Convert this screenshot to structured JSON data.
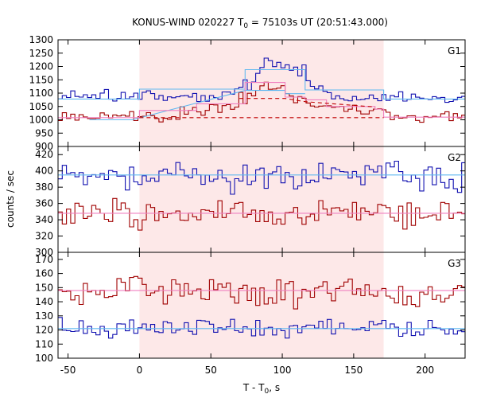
{
  "chart_data": {
    "type": "line",
    "title": {
      "prefix": "KONUS-WIND 020227 T",
      "subscript": "0",
      "suffix": " = 75103s UT (20:51:43.000)"
    },
    "xlabel": {
      "main": "T - T",
      "subscript": "0",
      "unit": ", s"
    },
    "ylabel": "counts / sec",
    "xlim": [
      -57,
      228
    ],
    "x_ticks": [
      -50,
      0,
      50,
      100,
      150,
      200
    ],
    "highlight": {
      "x_start": 0,
      "x_end": 171,
      "color": "#fde8e8"
    },
    "bin_width": 2.944,
    "colors": {
      "blue_series": "#1010b0",
      "red_series": "#a00000",
      "light_blue_fit": "#60b8f0",
      "pink_fit": "#f080c0",
      "red_dashed": "#c00000"
    },
    "panels": [
      {
        "id": "G1",
        "label": "G1",
        "ylim": [
          900,
          1300
        ],
        "y_ticks": [
          900,
          950,
          1000,
          1050,
          1100,
          1150,
          1200,
          1250,
          1300
        ],
        "series": [
          {
            "role": "noisy",
            "color": "blue_series",
            "base": 1085,
            "amplitude": 16,
            "seed": 11,
            "bumps": [
              {
                "x": 80,
                "y": 1185
              },
              {
                "x": 83,
                "y": 1225
              },
              {
                "x": 86,
                "y": 1265
              },
              {
                "x": 89,
                "y": 1240
              },
              {
                "x": 92,
                "y": 1210
              },
              {
                "x": 95,
                "y": 1235
              },
              {
                "x": 98,
                "y": 1200
              },
              {
                "x": 101,
                "y": 1225
              },
              {
                "x": 104,
                "y": 1190
              },
              {
                "x": 107,
                "y": 1210
              },
              {
                "x": 110,
                "y": 1180
              },
              {
                "x": 113,
                "y": 1215
              },
              {
                "x": 116,
                "y": 1160
              },
              {
                "x": 119,
                "y": 1130
              },
              {
                "x": 122,
                "y": 1120
              },
              {
                "x": 125,
                "y": 1130
              },
              {
                "x": 72,
                "y": 1140
              },
              {
                "x": 75,
                "y": 1120
              },
              {
                "x": 68,
                "y": 1125
              }
            ]
          },
          {
            "role": "noisy",
            "color": "red_series",
            "base": 1010,
            "amplitude": 15,
            "seed": 23,
            "bumps": [
              {
                "x": 30,
                "y": 1040
              },
              {
                "x": 40,
                "y": 1050
              },
              {
                "x": 50,
                "y": 1055
              },
              {
                "x": 60,
                "y": 1070
              },
              {
                "x": 70,
                "y": 1090
              },
              {
                "x": 76,
                "y": 1105
              },
              {
                "x": 80,
                "y": 1120
              },
              {
                "x": 83,
                "y": 1140
              },
              {
                "x": 86,
                "y": 1150
              },
              {
                "x": 89,
                "y": 1135
              },
              {
                "x": 92,
                "y": 1140
              },
              {
                "x": 95,
                "y": 1155
              },
              {
                "x": 98,
                "y": 1130
              },
              {
                "x": 101,
                "y": 1105
              },
              {
                "x": 104,
                "y": 1090
              },
              {
                "x": 107,
                "y": 1070
              },
              {
                "x": 110,
                "y": 1080
              },
              {
                "x": 113,
                "y": 1085
              },
              {
                "x": 118,
                "y": 1060
              },
              {
                "x": 125,
                "y": 1070
              },
              {
                "x": 132,
                "y": 1060
              },
              {
                "x": 140,
                "y": 1055
              },
              {
                "x": 150,
                "y": 1050
              },
              {
                "x": 160,
                "y": 1045
              },
              {
                "x": 168,
                "y": 1040
              }
            ]
          },
          {
            "role": "fit",
            "color": "light_blue_fit",
            "steps": [
              {
                "x0": -57,
                "x1": 0,
                "y": 1078
              },
              {
                "x0": 0,
                "x1": 74,
                "y": 1115
              },
              {
                "x0": 74,
                "x1": 116,
                "y": 1188
              },
              {
                "x0": 116,
                "x1": 171,
                "y": 1112
              },
              {
                "x0": 171,
                "x1": 228,
                "y": 1078
              }
            ]
          },
          {
            "role": "fit",
            "color": "light_blue_fit",
            "steps": [
              {
                "x0": -35,
                "x1": -5,
                "y": 1000
              },
              {
                "x0": 74,
                "x1": 102,
                "y": 1110
              },
              {
                "x0": 102,
                "x1": 116,
                "y": 1098
              }
            ]
          },
          {
            "role": "fit",
            "color": "pink_fit",
            "steps": [
              {
                "x0": -57,
                "x1": 0,
                "y": 1008
              },
              {
                "x0": 0,
                "x1": 40,
                "y": 1035
              },
              {
                "x0": 40,
                "x1": 74,
                "y": 1060
              },
              {
                "x0": 74,
                "x1": 102,
                "y": 1140
              },
              {
                "x0": 102,
                "x1": 116,
                "y": 1085
              },
              {
                "x0": 116,
                "x1": 131,
                "y": 1075
              },
              {
                "x0": 131,
                "x1": 165,
                "y": 1050
              },
              {
                "x0": 165,
                "x1": 171,
                "y": 1040
              },
              {
                "x0": 171,
                "x1": 228,
                "y": 1010
              }
            ]
          },
          {
            "role": "dashed",
            "color": "red_dashed",
            "points": [
              {
                "x": 0,
                "y": 1008
              },
              {
                "x": 171,
                "y": 1008
              }
            ]
          },
          {
            "role": "dashed",
            "color": "red_dashed",
            "points": [
              {
                "x": 70,
                "y": 1080
              },
              {
                "x": 102,
                "y": 1080
              },
              {
                "x": 116,
                "y": 1068
              },
              {
                "x": 165,
                "y": 1048
              }
            ]
          }
        ]
      },
      {
        "id": "G2",
        "label": "G2",
        "ylim": [
          300,
          430
        ],
        "y_ticks": [
          300,
          320,
          340,
          360,
          380,
          400,
          420
        ],
        "series": [
          {
            "role": "noisy",
            "color": "blue_series",
            "base": 393,
            "amplitude": 13,
            "seed": 37,
            "bumps": []
          },
          {
            "role": "noisy",
            "color": "red_series",
            "base": 348,
            "amplitude": 12,
            "seed": 53,
            "bumps": []
          },
          {
            "role": "fit",
            "color": "light_blue_fit",
            "steps": [
              {
                "x0": -57,
                "x1": 228,
                "y": 395
              }
            ]
          },
          {
            "role": "fit",
            "color": "pink_fit",
            "steps": [
              {
                "x0": -57,
                "x1": 228,
                "y": 348
              }
            ]
          }
        ]
      },
      {
        "id": "G3",
        "label": "G3",
        "ylim": [
          100,
          175
        ],
        "y_ticks": [
          100,
          110,
          120,
          130,
          140,
          150,
          160,
          170
        ],
        "series": [
          {
            "role": "noisy",
            "color": "red_series",
            "base": 147,
            "amplitude": 8,
            "seed": 71,
            "bumps": []
          },
          {
            "role": "noisy",
            "color": "blue_series",
            "base": 121,
            "amplitude": 5,
            "seed": 89,
            "bumps": []
          },
          {
            "role": "fit",
            "color": "pink_fit",
            "steps": [
              {
                "x0": -57,
                "x1": 228,
                "y": 148
              }
            ]
          },
          {
            "role": "fit",
            "color": "light_blue_fit",
            "steps": [
              {
                "x0": -57,
                "x1": 228,
                "y": 121
              }
            ]
          }
        ]
      }
    ]
  }
}
